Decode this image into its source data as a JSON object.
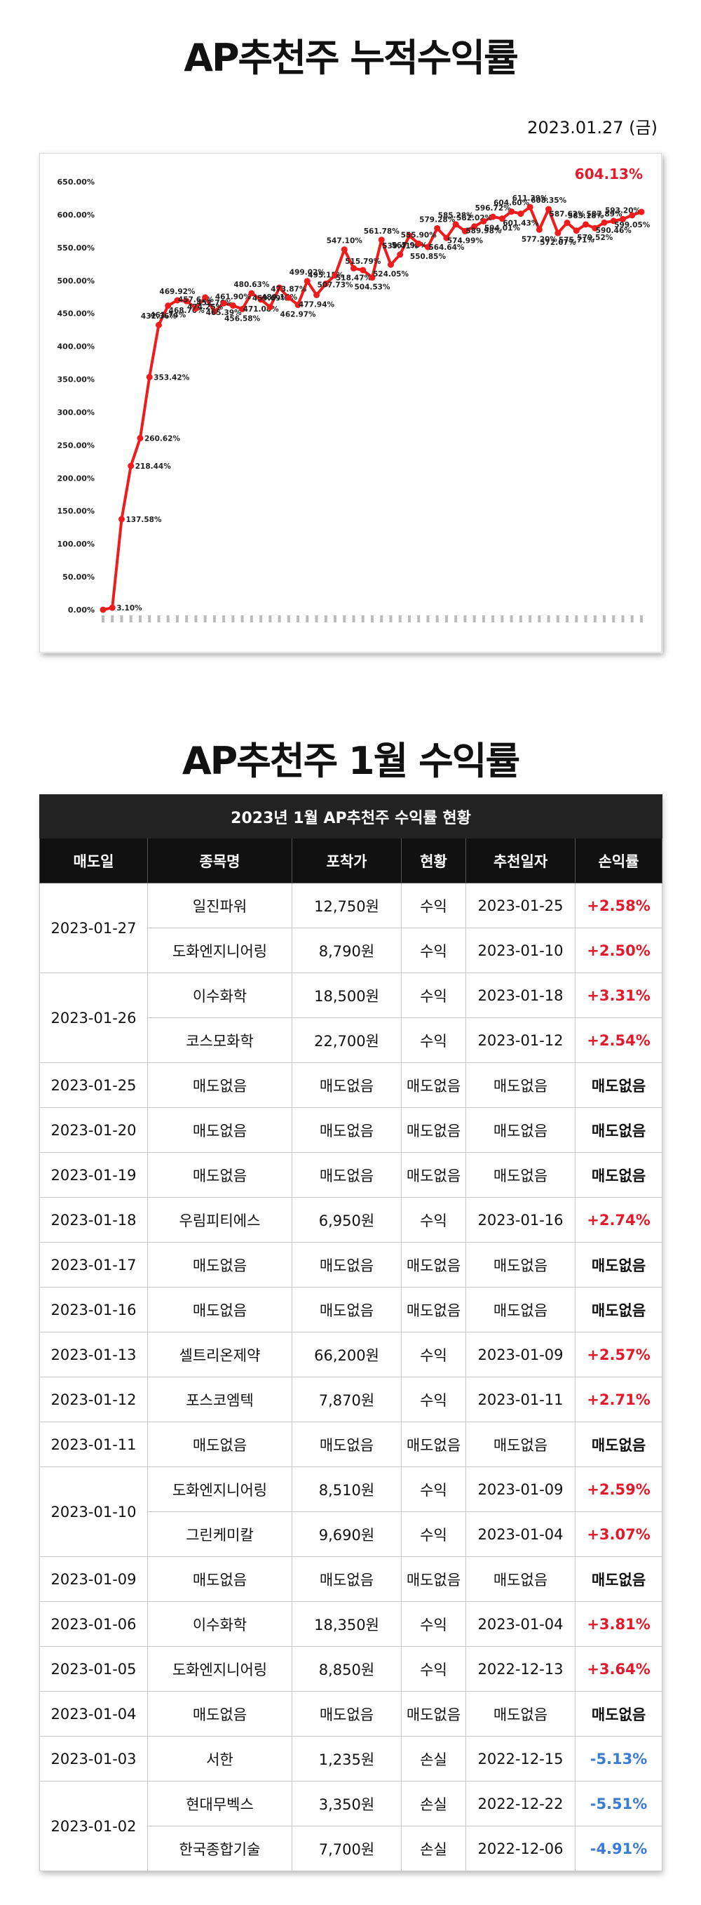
{
  "page": {
    "title": "AP추천주 누적수익률",
    "date": "2023.01.27 (금)",
    "monthly_title": "AP추천주 1월 수익률"
  },
  "colors": {
    "line": "#ee1c1c",
    "positive": "#e4192b",
    "negative": "#3a7bd5",
    "header_bg": "#111111"
  },
  "chart_data": {
    "type": "line",
    "title": "",
    "xlabel": "",
    "ylabel": "",
    "ylim": [
      0,
      650
    ],
    "y_ticks": [
      "0.00%",
      "50.00%",
      "100.00%",
      "150.00%",
      "200.00%",
      "250.00%",
      "300.00%",
      "350.00%",
      "400.00%",
      "450.00%",
      "500.00%",
      "550.00%",
      "600.00%",
      "650.00%"
    ],
    "grid": false,
    "latest_value_label": "604.13%",
    "series": [
      {
        "values": [
          0.0,
          3.1,
          137.58,
          218.44,
          260.62,
          353.42,
          432.36,
          461.74,
          469.92,
          468.7,
          457.61,
          474.25,
          452.76,
          465.39,
          461.9,
          456.58,
          480.63,
          471.08,
          459.69,
          489.14,
          473.87,
          462.97,
          499.02,
          477.94,
          495.15,
          507.73,
          547.1,
          518.47,
          515.79,
          504.53,
          561.78,
          524.05,
          539.41,
          567.96,
          555.9,
          550.85,
          579.28,
          564.64,
          585.28,
          574.99,
          582.02,
          589.98,
          596.72,
          594.01,
          604.6,
          601.43,
          611.39,
          577.2,
          608.35,
          572.07,
          587.62,
          575.71,
          585.18,
          579.52,
          587.89,
          590.46,
          593.2,
          599.05,
          604.13
        ],
        "labels": [
          "",
          "3.10%",
          "137.58%",
          "218.44%",
          "260.62%",
          "353.42%",
          "432.36%",
          "461.74%",
          "469.92%",
          "468.70%",
          "457.61%",
          "474.25%",
          "452.76%",
          "465.39%",
          "461.90%",
          "456.58%",
          "480.63%",
          "471.08%",
          "459.69%",
          "489.14%",
          "473.87%",
          "462.97%",
          "499.02%",
          "477.94%",
          "495.15%",
          "507.73%",
          "547.10%",
          "518.47%",
          "515.79%",
          "504.53%",
          "561.78%",
          "524.05%",
          "539.41%",
          "567.96%",
          "555.90%",
          "550.85%",
          "579.28%",
          "564.64%",
          "585.28%",
          "574.99%",
          "582.02%",
          "589.98%",
          "596.72%",
          "594.01%",
          "604.60%",
          "601.43%",
          "611.39%",
          "577.20%",
          "608.35%",
          "572.07%",
          "587.62%",
          "575.71%",
          "585.18%",
          "579.52%",
          "587.89%",
          "590.46%",
          "593.20%",
          "599.05%",
          ""
        ]
      }
    ]
  },
  "table": {
    "caption": "2023년 1월 AP추천주 수익률 현황",
    "headers": [
      "매도일",
      "종목명",
      "포착가",
      "현황",
      "추천일자",
      "손익률"
    ],
    "groups": [
      {
        "date": "2023-01-27",
        "rows": [
          {
            "name": "일진파워",
            "price": "12,750원",
            "status": "수익",
            "rec": "2023-01-25",
            "rate": "+2.58%",
            "kind": "pos"
          },
          {
            "name": "도화엔지니어링",
            "price": "8,790원",
            "status": "수익",
            "rec": "2023-01-10",
            "rate": "+2.50%",
            "kind": "pos"
          }
        ]
      },
      {
        "date": "2023-01-26",
        "rows": [
          {
            "name": "이수화학",
            "price": "18,500원",
            "status": "수익",
            "rec": "2023-01-18",
            "rate": "+3.31%",
            "kind": "pos"
          },
          {
            "name": "코스모화학",
            "price": "22,700원",
            "status": "수익",
            "rec": "2023-01-12",
            "rate": "+2.54%",
            "kind": "pos"
          }
        ]
      },
      {
        "date": "2023-01-25",
        "rows": [
          {
            "name": "매도없음",
            "price": "매도없음",
            "status": "매도없음",
            "rec": "매도없음",
            "rate": "매도없음",
            "kind": "none"
          }
        ]
      },
      {
        "date": "2023-01-20",
        "rows": [
          {
            "name": "매도없음",
            "price": "매도없음",
            "status": "매도없음",
            "rec": "매도없음",
            "rate": "매도없음",
            "kind": "none"
          }
        ]
      },
      {
        "date": "2023-01-19",
        "rows": [
          {
            "name": "매도없음",
            "price": "매도없음",
            "status": "매도없음",
            "rec": "매도없음",
            "rate": "매도없음",
            "kind": "none"
          }
        ]
      },
      {
        "date": "2023-01-18",
        "rows": [
          {
            "name": "우림피티에스",
            "price": "6,950원",
            "status": "수익",
            "rec": "2023-01-16",
            "rate": "+2.74%",
            "kind": "pos"
          }
        ]
      },
      {
        "date": "2023-01-17",
        "rows": [
          {
            "name": "매도없음",
            "price": "매도없음",
            "status": "매도없음",
            "rec": "매도없음",
            "rate": "매도없음",
            "kind": "none"
          }
        ]
      },
      {
        "date": "2023-01-16",
        "rows": [
          {
            "name": "매도없음",
            "price": "매도없음",
            "status": "매도없음",
            "rec": "매도없음",
            "rate": "매도없음",
            "kind": "none"
          }
        ]
      },
      {
        "date": "2023-01-13",
        "rows": [
          {
            "name": "셀트리온제약",
            "price": "66,200원",
            "status": "수익",
            "rec": "2023-01-09",
            "rate": "+2.57%",
            "kind": "pos"
          }
        ]
      },
      {
        "date": "2023-01-12",
        "rows": [
          {
            "name": "포스코엠텍",
            "price": "7,870원",
            "status": "수익",
            "rec": "2023-01-11",
            "rate": "+2.71%",
            "kind": "pos"
          }
        ]
      },
      {
        "date": "2023-01-11",
        "rows": [
          {
            "name": "매도없음",
            "price": "매도없음",
            "status": "매도없음",
            "rec": "매도없음",
            "rate": "매도없음",
            "kind": "none"
          }
        ]
      },
      {
        "date": "2023-01-10",
        "rows": [
          {
            "name": "도화엔지니어링",
            "price": "8,510원",
            "status": "수익",
            "rec": "2023-01-09",
            "rate": "+2.59%",
            "kind": "pos"
          },
          {
            "name": "그린케미칼",
            "price": "9,690원",
            "status": "수익",
            "rec": "2023-01-04",
            "rate": "+3.07%",
            "kind": "pos"
          }
        ]
      },
      {
        "date": "2023-01-09",
        "rows": [
          {
            "name": "매도없음",
            "price": "매도없음",
            "status": "매도없음",
            "rec": "매도없음",
            "rate": "매도없음",
            "kind": "none"
          }
        ]
      },
      {
        "date": "2023-01-06",
        "rows": [
          {
            "name": "이수화학",
            "price": "18,350원",
            "status": "수익",
            "rec": "2023-01-04",
            "rate": "+3.81%",
            "kind": "pos"
          }
        ]
      },
      {
        "date": "2023-01-05",
        "rows": [
          {
            "name": "도화엔지니어링",
            "price": "8,850원",
            "status": "수익",
            "rec": "2022-12-13",
            "rate": "+3.64%",
            "kind": "pos"
          }
        ]
      },
      {
        "date": "2023-01-04",
        "rows": [
          {
            "name": "매도없음",
            "price": "매도없음",
            "status": "매도없음",
            "rec": "매도없음",
            "rate": "매도없음",
            "kind": "none"
          }
        ]
      },
      {
        "date": "2023-01-03",
        "rows": [
          {
            "name": "서한",
            "price": "1,235원",
            "status": "손실",
            "rec": "2022-12-15",
            "rate": "-5.13%",
            "kind": "neg"
          }
        ]
      },
      {
        "date": "2023-01-02",
        "rows": [
          {
            "name": "현대무벡스",
            "price": "3,350원",
            "status": "손실",
            "rec": "2022-12-22",
            "rate": "-5.51%",
            "kind": "neg"
          },
          {
            "name": "한국종합기술",
            "price": "7,700원",
            "status": "손실",
            "rec": "2022-12-06",
            "rate": "-4.91%",
            "kind": "neg"
          }
        ]
      }
    ]
  }
}
